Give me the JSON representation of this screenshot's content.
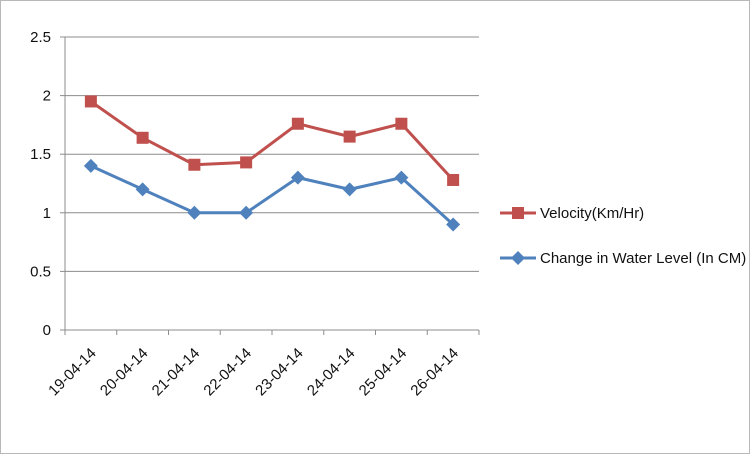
{
  "chart_data": {
    "type": "line",
    "categories": [
      "19-04-14",
      "20-04-14",
      "21-04-14",
      "22-04-14",
      "23-04-14",
      "24-04-14",
      "25-04-14",
      "26-04-14"
    ],
    "series": [
      {
        "name": "Velocity(Km/Hr)",
        "values": [
          1.95,
          1.64,
          1.41,
          1.43,
          1.76,
          1.65,
          1.76,
          1.28
        ],
        "color": "#c0504d",
        "marker": "square"
      },
      {
        "name": "Change in Water Level (In CM)",
        "values": [
          1.4,
          1.2,
          1.0,
          1.0,
          1.3,
          1.2,
          1.3,
          0.9
        ],
        "color": "#4f81bd",
        "marker": "diamond"
      }
    ],
    "ylim": [
      0,
      2.5
    ],
    "yticks": [
      "0",
      "0.5",
      "1",
      "1.5",
      "2",
      "2.5"
    ],
    "grid": true,
    "legend_position": "right"
  }
}
